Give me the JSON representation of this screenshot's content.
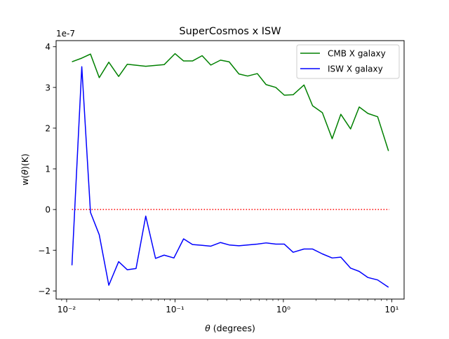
{
  "chart_data": {
    "type": "line",
    "title": "SuperCosmos x ISW",
    "xlabel": "θ (degrees)",
    "ylabel": "w(θ)(K)",
    "y_offset_label": "1e-7",
    "xscale": "log",
    "xlim": [
      0.008,
      13
    ],
    "ylim": [
      -2.2,
      4.15
    ],
    "x_ticks": [
      0.01,
      0.1,
      1,
      10
    ],
    "x_tick_labels": [
      "10⁻²",
      "10⁻¹",
      "10⁰",
      "10¹"
    ],
    "y_ticks": [
      -2,
      -1,
      0,
      1,
      2,
      3,
      4
    ],
    "y_tick_labels": [
      "−2",
      "−1",
      "0",
      "1",
      "2",
      "3",
      "4"
    ],
    "grid": false,
    "legend_position": "upper right",
    "reference_line": {
      "y": 0,
      "x_range": [
        0.0112,
        9.5
      ],
      "color": "#ff0000",
      "style": "dotted"
    },
    "series": [
      {
        "name": "CMB X galaxy",
        "color": "#008000",
        "x": [
          0.0112,
          0.0138,
          0.0166,
          0.02,
          0.0245,
          0.0302,
          0.0363,
          0.0537,
          0.0794,
          0.1,
          0.12,
          0.145,
          0.178,
          0.214,
          0.263,
          0.316,
          0.389,
          0.468,
          0.575,
          0.692,
          0.851,
          1.02,
          1.23,
          1.55,
          1.86,
          2.29,
          2.82,
          3.39,
          4.17,
          5.01,
          6.03,
          7.41,
          9.33
        ],
        "y": [
          3.63,
          3.72,
          3.82,
          3.24,
          3.62,
          3.27,
          3.57,
          3.52,
          3.56,
          3.83,
          3.65,
          3.65,
          3.78,
          3.55,
          3.67,
          3.63,
          3.33,
          3.28,
          3.34,
          3.07,
          3.0,
          2.81,
          2.82,
          3.06,
          2.55,
          2.38,
          1.74,
          2.34,
          1.98,
          2.52,
          2.36,
          2.28,
          1.44
        ]
      },
      {
        "name": "ISW X galaxy",
        "color": "#0000ff",
        "x": [
          0.0112,
          0.0138,
          0.0166,
          0.02,
          0.0245,
          0.0302,
          0.0363,
          0.0437,
          0.0537,
          0.0661,
          0.0794,
          0.0977,
          0.12,
          0.145,
          0.178,
          0.214,
          0.263,
          0.316,
          0.389,
          0.468,
          0.575,
          0.692,
          0.851,
          1.02,
          1.23,
          1.55,
          1.86,
          2.29,
          2.82,
          3.39,
          4.17,
          5.01,
          6.03,
          7.41,
          9.33
        ],
        "y": [
          -1.37,
          3.51,
          -0.07,
          -0.62,
          -1.86,
          -1.28,
          -1.48,
          -1.45,
          -0.16,
          -1.2,
          -1.12,
          -1.19,
          -0.72,
          -0.86,
          -0.88,
          -0.9,
          -0.81,
          -0.87,
          -0.89,
          -0.87,
          -0.85,
          -0.82,
          -0.85,
          -0.85,
          -1.05,
          -0.97,
          -0.97,
          -1.09,
          -1.19,
          -1.17,
          -1.44,
          -1.52,
          -1.67,
          -1.73,
          -1.91
        ]
      }
    ]
  }
}
